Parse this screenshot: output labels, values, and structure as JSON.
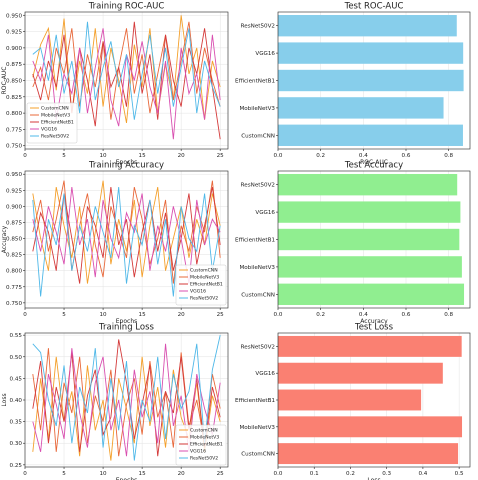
{
  "chart_data": [
    {
      "type": "line",
      "title": "Training ROC-AUC",
      "xlabel": "Epochs",
      "ylabel": "ROC-AUC",
      "xlim": [
        0,
        26
      ],
      "ylim": [
        0.745,
        0.955
      ],
      "xticks": [
        0,
        5,
        10,
        15,
        20,
        25
      ],
      "yticks": [
        0.75,
        0.775,
        0.8,
        0.825,
        0.85,
        0.875,
        0.9,
        0.925,
        0.95
      ],
      "ytick_labels": [
        "0.750",
        "0.775",
        "0.800",
        "0.825",
        "0.850",
        "0.875",
        "0.900",
        "0.925",
        "0.950"
      ],
      "grid": true,
      "legend": "bottom-left",
      "x": [
        1,
        2,
        3,
        4,
        5,
        6,
        7,
        8,
        9,
        10,
        11,
        12,
        13,
        14,
        15,
        16,
        17,
        18,
        19,
        20,
        21,
        22,
        23,
        24,
        25
      ],
      "series": [
        {
          "name": "CustomCNN",
          "color": "#f4a02b",
          "values": [
            0.855,
            0.905,
            0.93,
            0.835,
            0.945,
            0.8,
            0.88,
            0.83,
            0.93,
            0.81,
            0.9,
            0.85,
            0.785,
            0.905,
            0.84,
            0.93,
            0.8,
            0.875,
            0.82,
            0.95,
            0.86,
            0.9,
            0.79,
            0.88,
            0.84
          ]
        },
        {
          "name": "MobileNetV3",
          "color": "#e8683a",
          "values": [
            0.84,
            0.87,
            0.82,
            0.9,
            0.86,
            0.93,
            0.81,
            0.89,
            0.84,
            0.91,
            0.79,
            0.87,
            0.93,
            0.83,
            0.89,
            0.8,
            0.86,
            0.92,
            0.82,
            0.88,
            0.94,
            0.83,
            0.9,
            0.85,
            0.81
          ]
        },
        {
          "name": "EfficientNetB1",
          "color": "#d43a3a",
          "values": [
            0.86,
            0.82,
            0.88,
            0.84,
            0.92,
            0.8,
            0.9,
            0.85,
            0.78,
            0.91,
            0.84,
            0.87,
            0.81,
            0.94,
            0.83,
            0.89,
            0.79,
            0.92,
            0.85,
            0.81,
            0.9,
            0.86,
            0.93,
            0.84,
            0.76
          ]
        },
        {
          "name": "VGG16",
          "color": "#d94fb0",
          "values": [
            0.88,
            0.85,
            0.92,
            0.79,
            0.86,
            0.83,
            0.9,
            0.8,
            0.87,
            0.93,
            0.82,
            0.78,
            0.89,
            0.85,
            0.91,
            0.84,
            0.8,
            0.88,
            0.76,
            0.9,
            0.83,
            0.86,
            0.79,
            0.92,
            0.82
          ]
        },
        {
          "name": "ResNet50V2",
          "color": "#4fb8e8",
          "values": [
            0.89,
            0.9,
            0.85,
            0.92,
            0.83,
            0.88,
            0.8,
            0.94,
            0.82,
            0.87,
            0.91,
            0.84,
            0.89,
            0.79,
            0.86,
            0.92,
            0.83,
            0.9,
            0.81,
            0.87,
            0.93,
            0.8,
            0.88,
            0.84,
            0.81
          ]
        }
      ]
    },
    {
      "type": "bar",
      "orientation": "horizontal",
      "title": "Test ROC-AUC",
      "xlabel": "ROC-AUC",
      "ylabel": "",
      "xlim": [
        0,
        0.9
      ],
      "xticks": [
        0,
        0.2,
        0.4,
        0.6,
        0.8
      ],
      "xtick_labels": [
        "0.0",
        "0.2",
        "0.4",
        "0.6",
        "0.8"
      ],
      "grid": true,
      "color": "#87ceeb",
      "categories": [
        "ResNet50V2",
        "VGG16",
        "EfficientNetB1",
        "MobileNetV3",
        "CustomCNN"
      ],
      "values": [
        0.838,
        0.868,
        0.87,
        0.776,
        0.867
      ]
    },
    {
      "type": "line",
      "title": "Training Accuracy",
      "xlabel": "Epochs",
      "ylabel": "Accuracy",
      "xlim": [
        0,
        26
      ],
      "ylim": [
        0.742,
        0.955
      ],
      "xticks": [
        0,
        5,
        10,
        15,
        20,
        25
      ],
      "yticks": [
        0.75,
        0.775,
        0.8,
        0.825,
        0.85,
        0.875,
        0.9,
        0.925,
        0.95
      ],
      "ytick_labels": [
        "0.750",
        "0.775",
        "0.800",
        "0.825",
        "0.850",
        "0.875",
        "0.900",
        "0.925",
        "0.950"
      ],
      "grid": true,
      "legend": "bottom-right",
      "x": [
        1,
        2,
        3,
        4,
        5,
        6,
        7,
        8,
        9,
        10,
        11,
        12,
        13,
        14,
        15,
        16,
        17,
        18,
        19,
        20,
        21,
        22,
        23,
        24,
        25
      ],
      "series": [
        {
          "name": "CustomCNN",
          "color": "#f4a02b",
          "values": [
            0.92,
            0.85,
            0.8,
            0.93,
            0.87,
            0.82,
            0.9,
            0.78,
            0.86,
            0.94,
            0.81,
            0.88,
            0.83,
            0.91,
            0.79,
            0.87,
            0.93,
            0.8,
            0.85,
            0.9,
            0.82,
            0.88,
            0.84,
            0.92,
            0.87
          ]
        },
        {
          "name": "MobileNetV3",
          "color": "#e8683a",
          "values": [
            0.86,
            0.91,
            0.83,
            0.88,
            0.94,
            0.8,
            0.87,
            0.92,
            0.84,
            0.79,
            0.9,
            0.86,
            0.82,
            0.93,
            0.88,
            0.81,
            0.85,
            0.91,
            0.78,
            0.87,
            0.83,
            0.9,
            0.86,
            0.94,
            0.82
          ]
        },
        {
          "name": "EfficientNetB1",
          "color": "#d43a3a",
          "values": [
            0.83,
            0.89,
            0.86,
            0.8,
            0.92,
            0.85,
            0.78,
            0.9,
            0.87,
            0.82,
            0.93,
            0.84,
            0.88,
            0.79,
            0.86,
            0.91,
            0.83,
            0.89,
            0.8,
            0.85,
            0.92,
            0.81,
            0.87,
            0.93,
            0.84
          ]
        },
        {
          "name": "VGG16",
          "color": "#d94fb0",
          "values": [
            0.88,
            0.83,
            0.9,
            0.86,
            0.81,
            0.93,
            0.84,
            0.88,
            0.79,
            0.91,
            0.85,
            0.82,
            0.89,
            0.86,
            0.92,
            0.8,
            0.87,
            0.83,
            0.9,
            0.85,
            0.78,
            0.91,
            0.84,
            0.88,
            0.86
          ]
        },
        {
          "name": "ResNet50V2",
          "color": "#4fb8e8",
          "values": [
            0.91,
            0.76,
            0.88,
            0.84,
            0.92,
            0.8,
            0.87,
            0.83,
            0.9,
            0.86,
            0.82,
            0.93,
            0.78,
            0.87,
            0.84,
            0.91,
            0.81,
            0.88,
            0.76,
            0.9,
            0.85,
            0.83,
            0.92,
            0.8,
            0.87
          ]
        }
      ]
    },
    {
      "type": "bar",
      "orientation": "horizontal",
      "title": "Test Accuracy",
      "xlabel": "Accuracy",
      "ylabel": "",
      "xlim": [
        0,
        0.9
      ],
      "xticks": [
        0,
        0.2,
        0.4,
        0.6,
        0.8
      ],
      "xtick_labels": [
        "0.0",
        "0.2",
        "0.4",
        "0.6",
        "0.8"
      ],
      "grid": true,
      "color": "#90ee90",
      "categories": [
        "ResNet50V2",
        "VGG16",
        "EfficientNetB1",
        "MobileNetV3",
        "CustomCNN"
      ],
      "values": [
        0.84,
        0.855,
        0.85,
        0.862,
        0.872
      ]
    },
    {
      "type": "line",
      "title": "Training Loss",
      "xlabel": "Epochs",
      "ylabel": "Loss",
      "xlim": [
        0,
        26
      ],
      "ylim": [
        0.245,
        0.555
      ],
      "xticks": [
        0,
        5,
        10,
        15,
        20,
        25
      ],
      "yticks": [
        0.25,
        0.3,
        0.35,
        0.4,
        0.45,
        0.5,
        0.55
      ],
      "ytick_labels": [
        "0.25",
        "0.30",
        "0.35",
        "0.40",
        "0.45",
        "0.50",
        "0.55"
      ],
      "grid": true,
      "legend": "bottom-right",
      "x": [
        1,
        2,
        3,
        4,
        5,
        6,
        7,
        8,
        9,
        10,
        11,
        12,
        13,
        14,
        15,
        16,
        17,
        18,
        19,
        20,
        21,
        22,
        23,
        24,
        25
      ],
      "series": [
        {
          "name": "CustomCNN",
          "color": "#f4a02b",
          "values": [
            0.28,
            0.45,
            0.31,
            0.5,
            0.35,
            0.42,
            0.27,
            0.48,
            0.33,
            0.4,
            0.26,
            0.45,
            0.38,
            0.3,
            0.5,
            0.34,
            0.43,
            0.29,
            0.47,
            0.36,
            0.31,
            0.44,
            0.28,
            0.41,
            0.35
          ]
        },
        {
          "name": "MobileNetV3",
          "color": "#e8683a",
          "values": [
            0.46,
            0.33,
            0.52,
            0.28,
            0.44,
            0.37,
            0.5,
            0.3,
            0.41,
            0.35,
            0.47,
            0.27,
            0.39,
            0.45,
            0.32,
            0.49,
            0.36,
            0.42,
            0.29,
            0.51,
            0.34,
            0.4,
            0.3,
            0.46,
            0.38
          ]
        },
        {
          "name": "EfficientNetB1",
          "color": "#d43a3a",
          "values": [
            0.38,
            0.49,
            0.3,
            0.43,
            0.35,
            0.51,
            0.28,
            0.41,
            0.47,
            0.32,
            0.36,
            0.54,
            0.44,
            0.31,
            0.39,
            0.48,
            0.27,
            0.42,
            0.37,
            0.5,
            0.33,
            0.45,
            0.29,
            0.43,
            0.36
          ]
        },
        {
          "name": "VGG16",
          "color": "#d94fb0",
          "values": [
            0.35,
            0.28,
            0.46,
            0.39,
            0.31,
            0.52,
            0.37,
            0.29,
            0.44,
            0.5,
            0.33,
            0.4,
            0.27,
            0.47,
            0.36,
            0.42,
            0.3,
            0.53,
            0.34,
            0.41,
            0.28,
            0.46,
            0.38,
            0.32,
            0.44
          ]
        },
        {
          "name": "ResNet50V2",
          "color": "#4fb8e8",
          "values": [
            0.53,
            0.51,
            0.4,
            0.34,
            0.48,
            0.3,
            0.43,
            0.37,
            0.52,
            0.29,
            0.45,
            0.33,
            0.49,
            0.26,
            0.4,
            0.35,
            0.5,
            0.31,
            0.46,
            0.38,
            0.42,
            0.53,
            0.3,
            0.47,
            0.55
          ]
        }
      ]
    },
    {
      "type": "bar",
      "orientation": "horizontal",
      "title": "Test Loss",
      "xlabel": "Loss",
      "ylabel": "",
      "xlim": [
        0,
        0.53
      ],
      "xticks": [
        0,
        0.1,
        0.2,
        0.3,
        0.4,
        0.5
      ],
      "xtick_labels": [
        "0.0",
        "0.1",
        "0.2",
        "0.3",
        "0.4",
        "0.5"
      ],
      "grid": true,
      "color": "#fa8072",
      "categories": [
        "ResNet50V2",
        "VGG16",
        "EfficientNetB1",
        "MobileNetV3",
        "CustomCNN"
      ],
      "values": [
        0.507,
        0.455,
        0.395,
        0.508,
        0.497
      ]
    }
  ]
}
